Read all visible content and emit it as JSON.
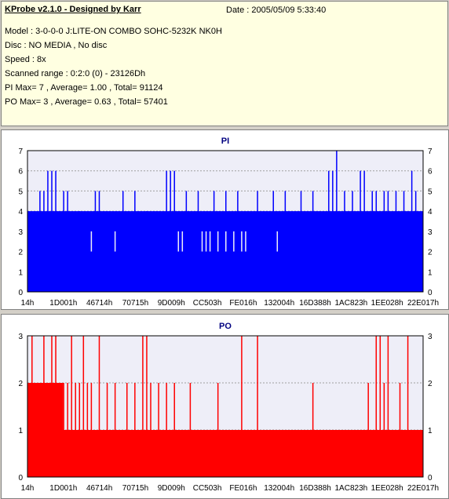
{
  "info": {
    "title": "KProbe v2.1.0 - Designed by Karr",
    "date": "Date : 2005/05/09 5:33:40",
    "lines": [
      "Model : 3-0-0-0 J:LITE-ON COMBO SOHC-5232K NK0H",
      "Disc : NO MEDIA , No disc",
      "Speed : 8x",
      "Scanned range : 0:2:0 (0) - 23126Dh",
      "PI Max= 7 , Average= 1.00 , Total= 91124",
      "PO Max= 3 , Average= 0.63 , Total= 57401"
    ]
  },
  "colors": {
    "pi": "#0000ff",
    "po": "#ff0000",
    "plot_bg": "#eeeef8",
    "grid": "#a0a0a0"
  },
  "chart_data": [
    {
      "type": "bar",
      "title": "PI",
      "ylim": [
        0,
        7
      ],
      "yticks": [
        "0",
        "1",
        "2",
        "3",
        "4",
        "5",
        "6",
        "7"
      ],
      "xticks": [
        "14h",
        "1D001h",
        "46714h",
        "70715h",
        "9D009h",
        "CC503h",
        "FE016h",
        "132004h",
        "16D388h",
        "1AC823h",
        "1EE028h",
        "22E017h"
      ],
      "grid": true,
      "levels": [
        {
          "value": 4,
          "from": 0,
          "to": 1
        },
        {
          "value": 3,
          "from": 0.24,
          "to": 0.92
        }
      ],
      "spikes": [
        {
          "x": 0.03,
          "y": 5
        },
        {
          "x": 0.04,
          "y": 5
        },
        {
          "x": 0.05,
          "y": 6
        },
        {
          "x": 0.06,
          "y": 6
        },
        {
          "x": 0.07,
          "y": 6
        },
        {
          "x": 0.09,
          "y": 5
        },
        {
          "x": 0.1,
          "y": 5
        },
        {
          "x": 0.13,
          "y": 4
        },
        {
          "x": 0.17,
          "y": 5
        },
        {
          "x": 0.18,
          "y": 5
        },
        {
          "x": 0.24,
          "y": 5
        },
        {
          "x": 0.27,
          "y": 5
        },
        {
          "x": 0.3,
          "y": 4
        },
        {
          "x": 0.35,
          "y": 6
        },
        {
          "x": 0.36,
          "y": 6
        },
        {
          "x": 0.37,
          "y": 6
        },
        {
          "x": 0.4,
          "y": 5
        },
        {
          "x": 0.43,
          "y": 5
        },
        {
          "x": 0.47,
          "y": 5
        },
        {
          "x": 0.5,
          "y": 5
        },
        {
          "x": 0.53,
          "y": 5
        },
        {
          "x": 0.58,
          "y": 5
        },
        {
          "x": 0.62,
          "y": 5
        },
        {
          "x": 0.65,
          "y": 5
        },
        {
          "x": 0.69,
          "y": 5
        },
        {
          "x": 0.72,
          "y": 5
        },
        {
          "x": 0.76,
          "y": 6
        },
        {
          "x": 0.77,
          "y": 6
        },
        {
          "x": 0.78,
          "y": 7
        },
        {
          "x": 0.8,
          "y": 5
        },
        {
          "x": 0.82,
          "y": 5
        },
        {
          "x": 0.84,
          "y": 6
        },
        {
          "x": 0.85,
          "y": 6
        },
        {
          "x": 0.87,
          "y": 5
        },
        {
          "x": 0.88,
          "y": 5
        },
        {
          "x": 0.9,
          "y": 5
        },
        {
          "x": 0.91,
          "y": 5
        },
        {
          "x": 0.93,
          "y": 5
        },
        {
          "x": 0.95,
          "y": 5
        },
        {
          "x": 0.97,
          "y": 6
        },
        {
          "x": 0.98,
          "y": 5
        }
      ],
      "dips": [
        {
          "x": 0.16,
          "y": 2
        },
        {
          "x": 0.22,
          "y": 2
        },
        {
          "x": 0.38,
          "y": 2
        },
        {
          "x": 0.39,
          "y": 2
        },
        {
          "x": 0.44,
          "y": 2
        },
        {
          "x": 0.45,
          "y": 2
        },
        {
          "x": 0.46,
          "y": 2
        },
        {
          "x": 0.48,
          "y": 2
        },
        {
          "x": 0.5,
          "y": 2
        },
        {
          "x": 0.52,
          "y": 2
        },
        {
          "x": 0.54,
          "y": 2
        },
        {
          "x": 0.55,
          "y": 2
        },
        {
          "x": 0.63,
          "y": 2
        }
      ]
    },
    {
      "type": "bar",
      "title": "PO",
      "ylim": [
        0,
        3
      ],
      "yticks": [
        "0",
        "1",
        "2",
        "3"
      ],
      "xticks": [
        "14h",
        "1D001h",
        "46714h",
        "70715h",
        "9D009h",
        "CC503h",
        "FE016h",
        "132004h",
        "16D388h",
        "1AC823h",
        "1EE028h",
        "22E017h"
      ],
      "grid": true,
      "levels": [
        {
          "value": 1,
          "from": 0,
          "to": 1
        },
        {
          "value": 2,
          "from": 0,
          "to": 0.09
        }
      ],
      "spikes": [
        {
          "x": 0.01,
          "y": 3
        },
        {
          "x": 0.02,
          "y": 2
        },
        {
          "x": 0.04,
          "y": 3
        },
        {
          "x": 0.05,
          "y": 2
        },
        {
          "x": 0.06,
          "y": 3
        },
        {
          "x": 0.07,
          "y": 3
        },
        {
          "x": 0.09,
          "y": 2
        },
        {
          "x": 0.1,
          "y": 2
        },
        {
          "x": 0.11,
          "y": 3
        },
        {
          "x": 0.12,
          "y": 2
        },
        {
          "x": 0.13,
          "y": 2
        },
        {
          "x": 0.14,
          "y": 3
        },
        {
          "x": 0.15,
          "y": 2
        },
        {
          "x": 0.16,
          "y": 2
        },
        {
          "x": 0.18,
          "y": 3
        },
        {
          "x": 0.2,
          "y": 2
        },
        {
          "x": 0.22,
          "y": 2
        },
        {
          "x": 0.25,
          "y": 2
        },
        {
          "x": 0.27,
          "y": 2
        },
        {
          "x": 0.29,
          "y": 3
        },
        {
          "x": 0.3,
          "y": 3
        },
        {
          "x": 0.31,
          "y": 2
        },
        {
          "x": 0.33,
          "y": 2
        },
        {
          "x": 0.35,
          "y": 2
        },
        {
          "x": 0.37,
          "y": 2
        },
        {
          "x": 0.41,
          "y": 2
        },
        {
          "x": 0.48,
          "y": 2
        },
        {
          "x": 0.54,
          "y": 3
        },
        {
          "x": 0.58,
          "y": 3
        },
        {
          "x": 0.72,
          "y": 2
        },
        {
          "x": 0.86,
          "y": 2
        },
        {
          "x": 0.88,
          "y": 3
        },
        {
          "x": 0.89,
          "y": 3
        },
        {
          "x": 0.9,
          "y": 2
        },
        {
          "x": 0.91,
          "y": 3
        },
        {
          "x": 0.94,
          "y": 2
        },
        {
          "x": 0.96,
          "y": 3
        }
      ],
      "dips": []
    }
  ]
}
